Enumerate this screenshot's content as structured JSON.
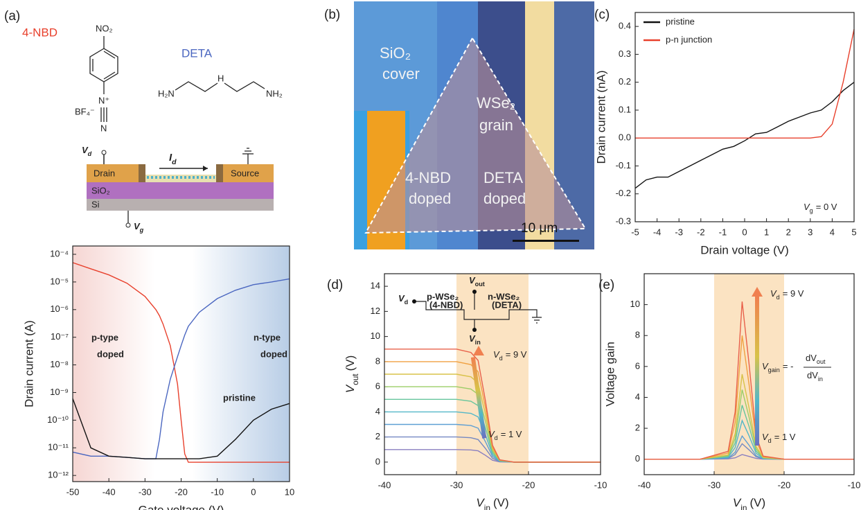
{
  "figure": {
    "panel_labels": [
      "(a)",
      "(b)",
      "(c)",
      "(d)",
      "(e)"
    ],
    "molecules": {
      "nbd_name": "4-NBD",
      "deta_name": "DETA",
      "no2": "NO₂",
      "bf4": "BF₄⁻",
      "n_plus": "N⁺",
      "n": "N",
      "h2n": "H₂N",
      "h": "H",
      "nh2": "NH₂"
    },
    "device": {
      "vd": {
        "v": "V",
        "sub": "d"
      },
      "id": {
        "v": "I",
        "sub": "d"
      },
      "drain": "Drain",
      "source": "Source",
      "sio2": "SiO₂",
      "si": "Si",
      "vg": {
        "v": "V",
        "sub": "g"
      }
    },
    "micrograph": {
      "sio2": "SiO₂",
      "cover": "cover",
      "wse2": "WSe₂",
      "grain": "grain",
      "nbd": "4-NBD",
      "nbd_doped": "doped",
      "deta": "DETA",
      "deta_doped": "doped",
      "scale": "10 μm"
    }
  },
  "chart_data": [
    {
      "type": "line",
      "x_label": "Gate voltage (V)",
      "y_label": "Drain current (A)",
      "log_y": true,
      "xlim": [
        -50,
        10
      ],
      "xticks": [
        -50,
        -40,
        -30,
        -20,
        -10,
        0,
        10
      ],
      "ylim": [
        6e-13,
        0.0002
      ],
      "yticks": [
        {
          "value": 1e-12,
          "label": "10⁻¹²"
        },
        {
          "value": 1e-11,
          "label": "10⁻¹¹"
        },
        {
          "value": 1e-10,
          "label": "10⁻¹⁰"
        },
        {
          "value": 1e-09,
          "label": "10⁻⁹"
        },
        {
          "value": 1e-08,
          "label": "10⁻⁸"
        },
        {
          "value": 1e-07,
          "label": "10⁻⁷"
        },
        {
          "value": 1e-06,
          "label": "10⁻⁶"
        },
        {
          "value": 1e-05,
          "label": "10⁻⁵"
        },
        {
          "value": 0.0001,
          "label": "10⁻⁴"
        }
      ],
      "x": [
        -50,
        -45,
        -40,
        -35,
        -30,
        -27,
        -26,
        -25,
        -23,
        -21,
        -20,
        -19,
        -18,
        -15,
        -10,
        -5,
        0,
        5,
        10
      ],
      "series": [
        {
          "color": "#e8402c",
          "values": [
            5e-05,
            3e-05,
            1.8e-05,
            9e-06,
            3e-06,
            1e-06,
            6e-07,
            3e-07,
            5e-08,
            2e-09,
            1e-10,
            6e-12,
            3e-12,
            3e-12,
            3e-12,
            3e-12,
            3e-12,
            3e-12,
            3e-12
          ]
        },
        {
          "color": "#4a66c0",
          "values": [
            7e-12,
            5e-12,
            5e-12,
            4.5e-12,
            4e-12,
            4e-12,
            2e-11,
            2e-10,
            3e-09,
            2e-08,
            5e-08,
            1.2e-07,
            2.5e-07,
            8e-07,
            2.5e-06,
            5e-06,
            8e-06,
            1e-05,
            1.3e-05
          ]
        },
        {
          "color": "#111111",
          "values": [
            6e-10,
            1e-11,
            5e-12,
            4.5e-12,
            4e-12,
            4e-12,
            4e-12,
            4e-12,
            4e-12,
            4e-12,
            4e-12,
            4e-12,
            4e-12,
            4e-12,
            5e-12,
            2e-11,
            1e-10,
            2.5e-10,
            4e-10
          ]
        }
      ],
      "annotations": [
        {
          "text": "p-type",
          "color": "#e8402c"
        },
        {
          "text": "doped",
          "color": "#e8402c"
        },
        {
          "text": "n-type",
          "color": "#4a66c0"
        },
        {
          "text": "doped",
          "color": "#4a66c0"
        },
        {
          "text": "pristine",
          "color": "#111111"
        }
      ]
    },
    {
      "type": "line",
      "x_label": "Drain voltage (V)",
      "y_label": "Drain current (nA)",
      "legend": "upper left",
      "xlim": [
        -5,
        5
      ],
      "xticks": [
        -5,
        -4,
        -3,
        -2,
        -1,
        0,
        1,
        2,
        3,
        4,
        5
      ],
      "ylim": [
        -0.3,
        0.45
      ],
      "yticks": [
        -0.3,
        -0.2,
        -0.1,
        {
          "value": 0,
          "label": "0.0"
        },
        0.1,
        0.2,
        0.3,
        0.4
      ],
      "x": [
        -5,
        -4.5,
        -4,
        -3.5,
        -3,
        -2.5,
        -2,
        -1.5,
        -1,
        -0.5,
        0,
        0.5,
        1,
        1.5,
        2,
        2.5,
        3,
        3.5,
        4,
        4.5,
        5
      ],
      "series": [
        {
          "name": "pristine",
          "color": "#111111",
          "values": [
            -0.18,
            -0.15,
            -0.14,
            -0.14,
            -0.12,
            -0.1,
            -0.08,
            -0.06,
            -0.04,
            -0.03,
            -0.01,
            0.015,
            0.02,
            0.04,
            0.06,
            0.075,
            0.09,
            0.1,
            0.13,
            0.17,
            0.2
          ]
        },
        {
          "name": "p-n junction",
          "color": "#e8402c",
          "values": [
            0,
            0,
            0,
            0,
            0,
            0,
            0,
            0,
            0,
            0,
            0,
            0,
            0,
            0,
            0,
            0,
            0,
            0.005,
            0.05,
            0.2,
            0.39
          ]
        }
      ],
      "annotation": {
        "v": "V",
        "sub": "g",
        "rest": "= 0 V"
      }
    },
    {
      "type": "line",
      "x_label": {
        "v": "V",
        "sub": "in",
        "rest": "(V)"
      },
      "y_label": {
        "v": "V",
        "sub": "out",
        "rest": "(V)"
      },
      "xlim": [
        -40,
        -10
      ],
      "xticks": [
        -40,
        -30,
        -20,
        -10
      ],
      "ylim": [
        -1,
        15
      ],
      "yticks": [
        0,
        2,
        4,
        6,
        8,
        10,
        12,
        14
      ],
      "highlight_x": [
        -30,
        -20
      ],
      "highlight_color": "#fbe3c2",
      "x": [
        -40,
        -30,
        -28,
        -27,
        -26,
        -25,
        -24,
        -22,
        -10
      ],
      "series": [
        {
          "color": "#8a7fc0",
          "values": [
            1,
            1,
            0.97,
            0.9,
            0.55,
            0.15,
            0.02,
            0,
            0
          ]
        },
        {
          "color": "#7488c2",
          "values": [
            2,
            2,
            1.94,
            1.8,
            1.1,
            0.3,
            0.04,
            0,
            0
          ]
        },
        {
          "color": "#5d9fd4",
          "values": [
            3,
            3,
            2.91,
            2.7,
            1.65,
            0.45,
            0.06,
            0,
            0
          ]
        },
        {
          "color": "#52b7c8",
          "values": [
            4,
            4,
            3.88,
            3.6,
            2.2,
            0.6,
            0.08,
            0,
            0
          ]
        },
        {
          "color": "#66c59c",
          "values": [
            5,
            5,
            4.85,
            4.5,
            2.75,
            0.75,
            0.1,
            0,
            0
          ]
        },
        {
          "color": "#9ccd66",
          "values": [
            6,
            6,
            5.82,
            5.4,
            3.3,
            0.9,
            0.12,
            0,
            0
          ]
        },
        {
          "color": "#d8c248",
          "values": [
            7,
            7,
            6.79,
            6.3,
            3.85,
            1.05,
            0.14,
            0,
            0
          ]
        },
        {
          "color": "#f0a040",
          "values": [
            8,
            8,
            7.76,
            7.2,
            4.4,
            1.2,
            0.16,
            0,
            0
          ]
        },
        {
          "color": "#e8604a",
          "values": [
            9,
            9,
            8.73,
            8.1,
            4.95,
            1.35,
            0.18,
            0,
            0
          ]
        }
      ],
      "inset": {
        "vd": {
          "v": "V",
          "sub": "d"
        },
        "vout": {
          "v": "V",
          "sub": "out"
        },
        "p": "p-WSe₂",
        "p_dop": "(4-NBD)",
        "n": "n-WSe₂",
        "n_dop": "(DETA)",
        "vin": {
          "v": "V",
          "sub": "in"
        }
      },
      "annotations": [
        {
          "v": "V",
          "sub": "d",
          "rest": "= 9 V"
        },
        {
          "v": "V",
          "sub": "d",
          "rest": "= 1 V"
        }
      ]
    },
    {
      "type": "line",
      "x_label": {
        "v": "V",
        "sub": "in",
        "rest": "(V)"
      },
      "y_label": "Voltage gain",
      "xlim": [
        -40,
        -10
      ],
      "xticks": [
        -40,
        -30,
        -20,
        -10
      ],
      "ylim": [
        -1,
        12
      ],
      "yticks": [
        0,
        2,
        4,
        6,
        8,
        10
      ],
      "highlight_x": [
        -30,
        -20
      ],
      "highlight_color": "#fbe3c2",
      "x": [
        -40,
        -32,
        -28,
        -27,
        -26,
        -25,
        -24,
        -23,
        -20,
        -10
      ],
      "series": [
        {
          "color": "#8a7fc0",
          "values": [
            0,
            0,
            0.02,
            0.09,
            0.3,
            0.18,
            0.05,
            0.01,
            0,
            0
          ]
        },
        {
          "color": "#7488c2",
          "values": [
            0,
            0,
            0.05,
            0.3,
            1,
            0.6,
            0.15,
            0.02,
            0,
            0
          ]
        },
        {
          "color": "#5d9fd4",
          "values": [
            0,
            0,
            0.08,
            0.45,
            1.5,
            0.9,
            0.23,
            0.03,
            0,
            0
          ]
        },
        {
          "color": "#52b7c8",
          "values": [
            0,
            0,
            0.13,
            0.75,
            2.5,
            1.5,
            0.38,
            0.05,
            0,
            0
          ]
        },
        {
          "color": "#66c59c",
          "values": [
            0,
            0,
            0.18,
            1.05,
            3.5,
            2.1,
            0.53,
            0.07,
            0,
            0
          ]
        },
        {
          "color": "#9ccd66",
          "values": [
            0,
            0,
            0.23,
            1.35,
            4.5,
            2.7,
            0.68,
            0.09,
            0,
            0
          ]
        },
        {
          "color": "#d8c248",
          "values": [
            0,
            0,
            0.28,
            1.65,
            5.5,
            3.3,
            0.83,
            0.11,
            0,
            0
          ]
        },
        {
          "color": "#f0a040",
          "values": [
            0,
            0,
            0.4,
            2.4,
            8,
            4.8,
            1.2,
            0.16,
            0,
            0
          ]
        },
        {
          "color": "#e8604a",
          "values": [
            0,
            0,
            0.51,
            3.06,
            10.2,
            6.12,
            1.53,
            0.2,
            0,
            0
          ]
        }
      ],
      "annotations": [
        {
          "v": "V",
          "sub": "d",
          "rest": "= 9 V"
        },
        {
          "v": "V",
          "sub": "d",
          "rest": "= 1 V"
        }
      ],
      "formula": {
        "v": "V",
        "sub": "gain",
        "eq": "= -",
        "num": "dV",
        "num_sub": "out",
        "den": "dV",
        "den_sub": "in"
      }
    }
  ]
}
